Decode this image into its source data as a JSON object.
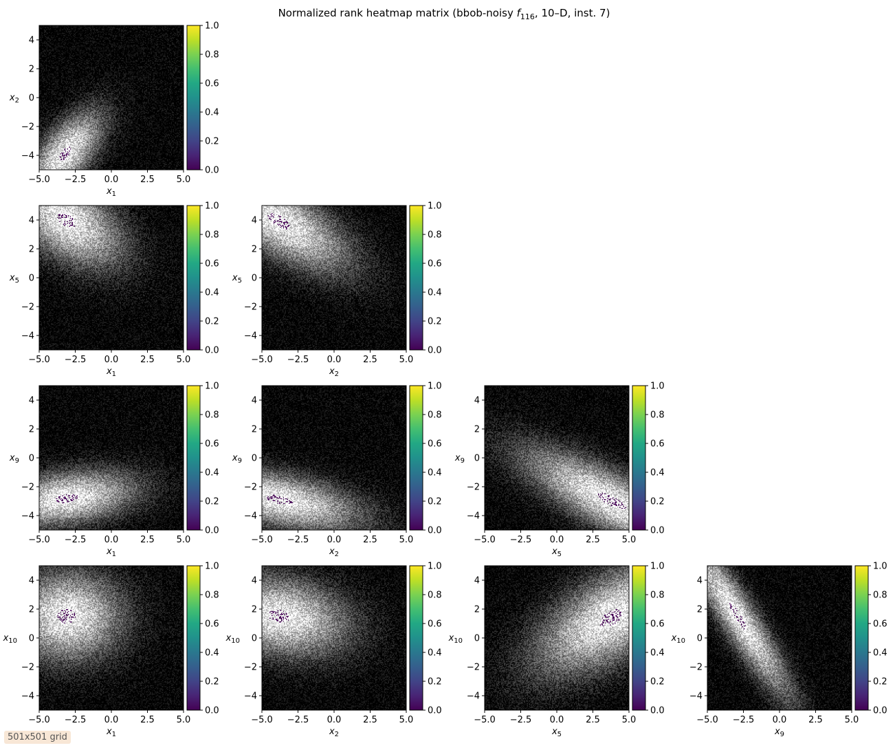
{
  "figure": {
    "title_prefix": "Normalized rank heatmap matrix (bbob-noisy ",
    "title_f": "f",
    "title_f_sub": "116",
    "title_suffix": ", 10–D, inst. 7)",
    "grid_label": "501x501 grid"
  },
  "chart_data": {
    "type": "heatmap",
    "colormap_image": "grayscale (black = high rank value, white = low), minimum region shown in purple",
    "colorbar": {
      "colormap": "viridis",
      "range": [
        0,
        1
      ],
      "ticks": [
        "0.0",
        "0.2",
        "0.4",
        "0.6",
        "0.8",
        "1.0"
      ]
    },
    "x_ticks": [
      -5.0,
      -2.5,
      0.0,
      2.5,
      5.0
    ],
    "x_tick_labels": [
      "−5.0",
      "−2.5",
      "0.0",
      "2.5",
      "5.0"
    ],
    "y_ticks": [
      -4,
      -2,
      0,
      2,
      4
    ],
    "y_tick_labels": [
      "−4",
      "−2",
      "0",
      "2",
      "4"
    ],
    "xlim": [
      -5,
      5
    ],
    "ylim": [
      -5,
      5
    ],
    "panels": [
      {
        "row": 0,
        "col": 0,
        "xvar": "x",
        "xsub": "1",
        "yvar": "x",
        "ysub": "2",
        "optimum": [
          -3.2,
          -3.9
        ],
        "angle": 50,
        "sx": 2.6,
        "sy": 1.2
      },
      {
        "row": 1,
        "col": 0,
        "xvar": "x",
        "xsub": "1",
        "yvar": "x",
        "ysub": "5",
        "optimum": [
          -3.1,
          4.0
        ],
        "angle": -35,
        "sx": 3.2,
        "sy": 1.8
      },
      {
        "row": 1,
        "col": 1,
        "xvar": "x",
        "xsub": "2",
        "yvar": "x",
        "ysub": "5",
        "optimum": [
          -3.8,
          3.9
        ],
        "angle": -32,
        "sx": 4.0,
        "sy": 1.6
      },
      {
        "row": 2,
        "col": 0,
        "xvar": "x",
        "xsub": "1",
        "yvar": "x",
        "ysub": "9",
        "optimum": [
          -3.1,
          -2.8
        ],
        "angle": 8,
        "sx": 3.5,
        "sy": 1.3
      },
      {
        "row": 2,
        "col": 1,
        "xvar": "x",
        "xsub": "2",
        "yvar": "x",
        "ysub": "9",
        "optimum": [
          -3.8,
          -2.9
        ],
        "angle": -12,
        "sx": 4.2,
        "sy": 1.3
      },
      {
        "row": 2,
        "col": 2,
        "xvar": "x",
        "xsub": "5",
        "yvar": "x",
        "ysub": "9",
        "optimum": [
          3.8,
          -3.0
        ],
        "angle": -28,
        "sx": 5.0,
        "sy": 1.4
      },
      {
        "row": 3,
        "col": 0,
        "xvar": "x",
        "xsub": "1",
        "yvar": "x",
        "ysub": "10",
        "optimum": [
          -3.1,
          1.5
        ],
        "angle": 0,
        "sx": 2.8,
        "sy": 2.2
      },
      {
        "row": 3,
        "col": 1,
        "xvar": "x",
        "xsub": "2",
        "yvar": "x",
        "ysub": "10",
        "optimum": [
          -3.8,
          1.5
        ],
        "angle": -10,
        "sx": 3.5,
        "sy": 1.9
      },
      {
        "row": 3,
        "col": 2,
        "xvar": "x",
        "xsub": "5",
        "yvar": "x",
        "ysub": "10",
        "optimum": [
          3.8,
          1.4
        ],
        "angle": 32,
        "sx": 4.3,
        "sy": 2.0
      },
      {
        "row": 3,
        "col": 3,
        "xvar": "x",
        "xsub": "9",
        "yvar": "x",
        "ysub": "10",
        "optimum": [
          -2.9,
          1.5
        ],
        "angle": -58,
        "sx": 4.8,
        "sy": 0.9
      }
    ]
  }
}
